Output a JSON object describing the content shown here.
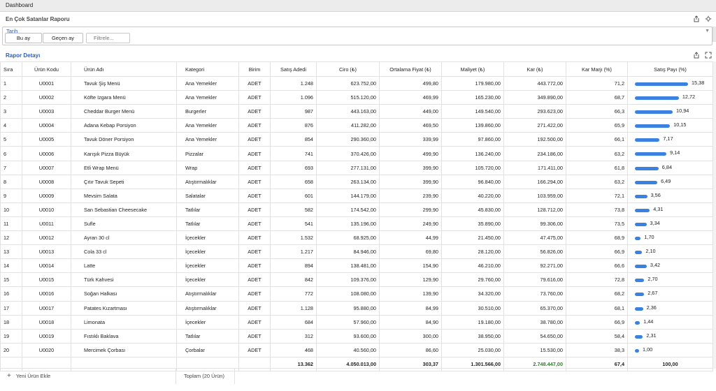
{
  "topbar": {
    "tab": "Dashboard"
  },
  "report": {
    "title": "En Çok Satanlar Raporu",
    "icons": [
      "share-icon",
      "settings-icon"
    ]
  },
  "filter": {
    "label": "Tarih",
    "this_month": "Bu ay",
    "last_month": "Geçen ay",
    "placeholder": "Filtrele..."
  },
  "detail": {
    "title": "Rapor Detayı",
    "icons": [
      "share-icon",
      "expand-icon"
    ]
  },
  "columns": [
    "Sıra",
    "Ürün Kodu",
    "Ürün Adı",
    "Kategori",
    "Birim",
    "Satış Adedi",
    "Ciro (₺)",
    "Ortalama Fiyat (₺)",
    "Maliyet (₺)",
    "Kar (₺)",
    "Kar Marjı (%)",
    "Satış Payı (%)"
  ],
  "rows": [
    {
      "no": "1",
      "code": "U0001",
      "name": "Tavuk Şiş Menü",
      "cat": "Ana Yemekler",
      "unit": "ADET",
      "qty": "1.248",
      "revenue": "623.752,00",
      "avg": "499,80",
      "cost": "179.980,00",
      "profit": "443.772,00",
      "margin": "71,2",
      "share": "15,38",
      "share_num": 15.38,
      "margin_status": "good"
    },
    {
      "no": "2",
      "code": "U0002",
      "name": "Köfte Izgara Menü",
      "cat": "Ana Yemekler",
      "unit": "ADET",
      "qty": "1.096",
      "revenue": "515.120,00",
      "avg": "469,99",
      "cost": "165.230,00",
      "profit": "349.890,00",
      "margin": "68,7",
      "share": "12,72",
      "share_num": 12.72,
      "margin_status": "good"
    },
    {
      "no": "3",
      "code": "U0003",
      "name": "Cheddar Burger Menü",
      "cat": "Burgerler",
      "unit": "ADET",
      "qty": "987",
      "revenue": "443.163,00",
      "avg": "449,00",
      "cost": "149.540,00",
      "profit": "293.623,00",
      "margin": "66,3",
      "share": "10,94",
      "share_num": 10.94,
      "margin_status": "good"
    },
    {
      "no": "4",
      "code": "U0004",
      "name": "Adana Kebap Porsiyon",
      "cat": "Ana Yemekler",
      "unit": "ADET",
      "qty": "876",
      "revenue": "411.282,00",
      "avg": "469,50",
      "cost": "139.860,00",
      "profit": "271.422,00",
      "margin": "65,9",
      "share": "10,15",
      "share_num": 10.15,
      "margin_status": "good"
    },
    {
      "no": "5",
      "code": "U0005",
      "name": "Tavuk Döner Porsiyon",
      "cat": "Ana Yemekler",
      "unit": "ADET",
      "qty": "854",
      "revenue": "290.360,00",
      "avg": "339,99",
      "cost": "97.860,00",
      "profit": "192.500,00",
      "margin": "66,1",
      "share": "7,17",
      "share_num": 7.17,
      "margin_status": "good"
    },
    {
      "no": "6",
      "code": "U0006",
      "name": "Karışık Pizza Büyük",
      "cat": "Pizzalar",
      "unit": "ADET",
      "qty": "741",
      "revenue": "370.426,00",
      "avg": "499,90",
      "cost": "136.240,00",
      "profit": "234.186,00",
      "margin": "63,2",
      "share": "9,14",
      "share_num": 9.14,
      "margin_status": "good"
    },
    {
      "no": "7",
      "code": "U0007",
      "name": "Etli Wrap Menü",
      "cat": "Wrap",
      "unit": "ADET",
      "qty": "693",
      "revenue": "277.131,00",
      "avg": "399,90",
      "cost": "105.720,00",
      "profit": "171.411,00",
      "margin": "61,8",
      "share": "6,84",
      "share_num": 6.84,
      "margin_status": "good"
    },
    {
      "no": "8",
      "code": "U0008",
      "name": "Çıtır Tavuk Sepeti",
      "cat": "Atıştırmalıklar",
      "unit": "ADET",
      "qty": "658",
      "revenue": "263.134,00",
      "avg": "399,90",
      "cost": "96.840,00",
      "profit": "166.294,00",
      "margin": "63,2",
      "share": "6,49",
      "share_num": 6.49,
      "margin_status": "good"
    },
    {
      "no": "9",
      "code": "U0009",
      "name": "Mevsim Salata",
      "cat": "Salatalar",
      "unit": "ADET",
      "qty": "601",
      "revenue": "144.179,00",
      "avg": "239,90",
      "cost": "40.220,00",
      "profit": "103.959,00",
      "margin": "72,1",
      "share": "3,56",
      "share_num": 3.56,
      "margin_status": "good"
    },
    {
      "no": "10",
      "code": "U0010",
      "name": "San Sebastian Cheesecake",
      "cat": "Tatlılar",
      "unit": "ADET",
      "qty": "582",
      "revenue": "174.542,00",
      "avg": "299,90",
      "cost": "45.830,00",
      "profit": "128.712,00",
      "margin": "73,8",
      "share": "4,31",
      "share_num": 4.31,
      "margin_status": "good"
    },
    {
      "no": "11",
      "code": "U0011",
      "name": "Sufle",
      "cat": "Tatlılar",
      "unit": "ADET",
      "qty": "541",
      "revenue": "135.196,00",
      "avg": "249,90",
      "cost": "35.890,00",
      "profit": "99.306,00",
      "margin": "73,5",
      "share": "3,34",
      "share_num": 3.34,
      "margin_status": "good"
    },
    {
      "no": "12",
      "code": "U0012",
      "name": "Ayran 30 cl",
      "cat": "İçecekler",
      "unit": "ADET",
      "qty": "1.532",
      "revenue": "68.925,00",
      "avg": "44,99",
      "cost": "21.450,00",
      "profit": "47.475,00",
      "margin": "68,9",
      "share": "1,70",
      "share_num": 1.7,
      "margin_status": "good"
    },
    {
      "no": "13",
      "code": "U0013",
      "name": "Cola 33 cl",
      "cat": "İçecekler",
      "unit": "ADET",
      "qty": "1.217",
      "revenue": "84.946,00",
      "avg": "69,80",
      "cost": "28.120,00",
      "profit": "56.826,00",
      "margin": "66,9",
      "share": "2,10",
      "share_num": 2.1,
      "margin_status": "good"
    },
    {
      "no": "14",
      "code": "U0014",
      "name": "Latte",
      "cat": "İçecekler",
      "unit": "ADET",
      "qty": "894",
      "revenue": "138.481,00",
      "avg": "154,90",
      "cost": "46.210,00",
      "profit": "92.271,00",
      "margin": "66,6",
      "share": "3,42",
      "share_num": 3.42,
      "margin_status": "good"
    },
    {
      "no": "15",
      "code": "U0015",
      "name": "Türk Kahvesi",
      "cat": "İçecekler",
      "unit": "ADET",
      "qty": "842",
      "revenue": "109.376,00",
      "avg": "129,90",
      "cost": "29.760,00",
      "profit": "79.616,00",
      "margin": "72,8",
      "share": "2,70",
      "share_num": 2.7,
      "margin_status": "good"
    },
    {
      "no": "16",
      "code": "U0016",
      "name": "Soğan Halkası",
      "cat": "Atıştırmalıklar",
      "unit": "ADET",
      "qty": "772",
      "revenue": "108.080,00",
      "avg": "139,90",
      "cost": "34.320,00",
      "profit": "73.760,00",
      "margin": "68,2",
      "share": "2,67",
      "share_num": 2.67,
      "margin_status": "good"
    },
    {
      "no": "17",
      "code": "U0017",
      "name": "Patates Kızartması",
      "cat": "Atıştırmalıklar",
      "unit": "ADET",
      "qty": "1.128",
      "revenue": "95.880,00",
      "avg": "84,99",
      "cost": "30.510,00",
      "profit": "65.370,00",
      "margin": "68,1",
      "share": "2,36",
      "share_num": 2.36,
      "margin_status": "good"
    },
    {
      "no": "18",
      "code": "U0018",
      "name": "Limonata",
      "cat": "İçecekler",
      "unit": "ADET",
      "qty": "684",
      "revenue": "57.960,00",
      "avg": "84,90",
      "cost": "19.180,00",
      "profit": "38.780,00",
      "margin": "66,9",
      "share": "1,44",
      "share_num": 1.44,
      "margin_status": "good"
    },
    {
      "no": "19",
      "code": "U0019",
      "name": "Fıstıklı Baklava",
      "cat": "Tatlılar",
      "unit": "ADET",
      "qty": "312",
      "revenue": "93.600,00",
      "avg": "300,00",
      "cost": "38.950,00",
      "profit": "54.650,00",
      "margin": "58,4",
      "share": "2,31",
      "share_num": 2.31,
      "margin_status": "bad"
    },
    {
      "no": "20",
      "code": "U0020",
      "name": "Mercimek Çorbası",
      "cat": "Çorbalar",
      "unit": "ADET",
      "qty": "468",
      "revenue": "40.560,00",
      "avg": "86,60",
      "cost": "25.030,00",
      "profit": "15.530,00",
      "margin": "38,3",
      "share": "1,00",
      "share_num": 1.0,
      "margin_status": "bad"
    }
  ],
  "totals": {
    "qty": "13.362",
    "revenue": "4.050.013,00",
    "avg": "303,37",
    "cost": "1.301.566,00",
    "profit": "2.748.447,00",
    "margin": "67,4",
    "share": "100,00"
  },
  "footer": {
    "add_label": "Yeni Ürün Ekle",
    "total_label": "Toplam (20 Ürün)"
  },
  "colors": {
    "accent": "#2b5fb4",
    "bar": "#3b82e0",
    "profit_green": "#1e8a1e",
    "margin_red": "#e02020"
  }
}
